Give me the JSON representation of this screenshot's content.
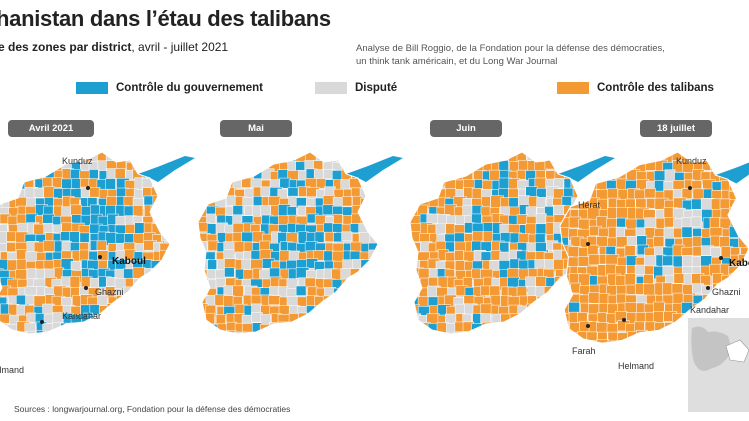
{
  "header": {
    "title": "hanistan dans l’étau des talibans",
    "subtitle_bold": "e des zones par district",
    "subtitle_rest": ", avril - juillet 2021",
    "analysis_line1": "Analyse de Bill Roggio, de la Fondation pour la défense des démocraties,",
    "analysis_line2": "un think tank américain, et du Long War Journal"
  },
  "legend": {
    "government": {
      "label": "Contrôle du gouvernement",
      "color": "#1e9fd2"
    },
    "disputed": {
      "label": "Disputé",
      "color": "#d9d9d9"
    },
    "taliban": {
      "label": "Contrôle des talibans",
      "color": "#f39a35"
    }
  },
  "months": [
    "Avril 2021",
    "Mai",
    "Juin",
    "18 juillet"
  ],
  "cities": {
    "kunduz": "Kunduz",
    "kabul": "Kaboul",
    "ghazni": "Ghazni",
    "kandahar": "Kandahar",
    "helmand": "Helmand",
    "herat": "Hérat",
    "farah": "Farah"
  },
  "sources": "Sources : longwarjournal.org, Fondation pour la défense des démocraties"
}
